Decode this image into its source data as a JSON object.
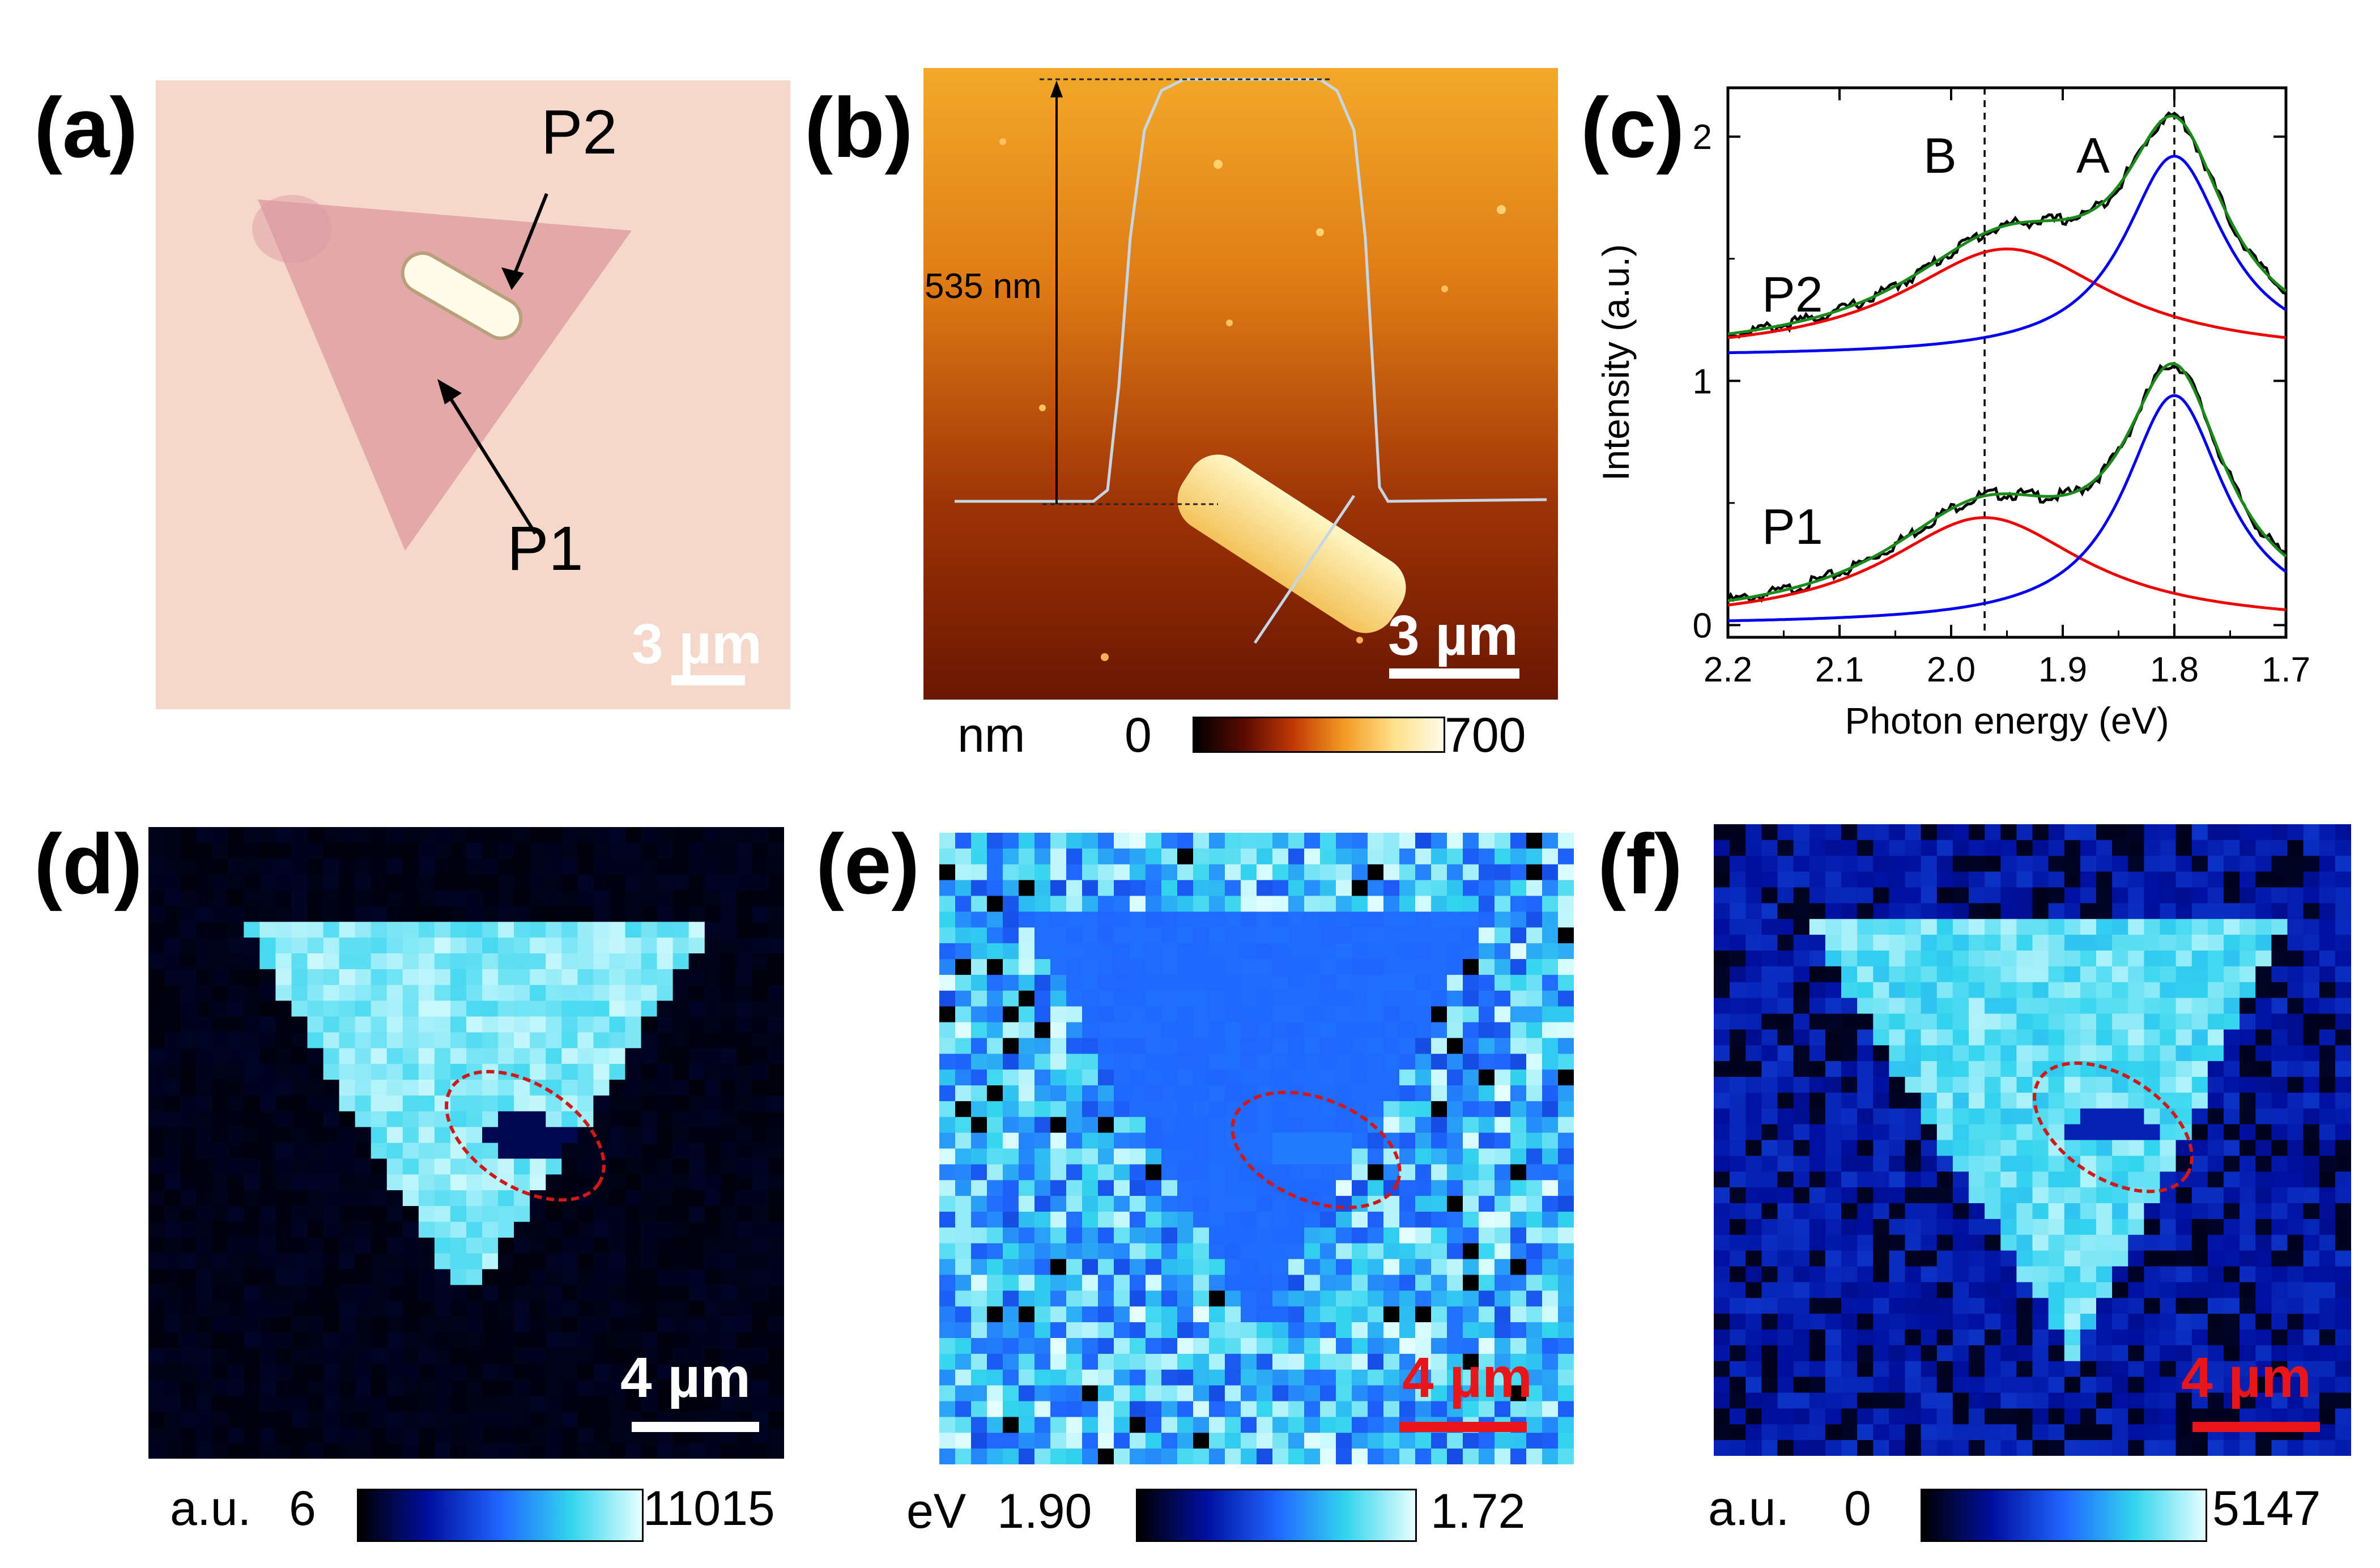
{
  "panels": {
    "a": {
      "label": "(a)",
      "p1": "P1",
      "p2": "P2",
      "scalebar": "3 µm",
      "colors": {
        "background": "#f5d6c8",
        "triangle": "#e0a6a6",
        "rod": "#fff8e8"
      }
    },
    "b": {
      "label": "(b)",
      "height_annotation": "535 nm",
      "scalebar": "3 µm",
      "colorbar": {
        "unit": "nm",
        "min": "0",
        "max": "700"
      }
    },
    "c": {
      "label": "(c)",
      "peak_b": "B",
      "peak_a": "A",
      "p1": "P1",
      "p2": "P2"
    },
    "d": {
      "label": "(d)",
      "scalebar": "4 µm",
      "colorbar": {
        "unit": "a.u.",
        "min": "6",
        "max": "11015"
      }
    },
    "e": {
      "label": "(e)",
      "scalebar": "4 µm",
      "colorbar": {
        "unit": "eV",
        "min": "1.90",
        "max": "1.72"
      }
    },
    "f": {
      "label": "(f)",
      "scalebar": "4 µm",
      "colorbar": {
        "unit": "a.u.",
        "min": "0",
        "max": "5147"
      }
    }
  },
  "chart_data": {
    "type": "line",
    "xlabel": "Photon energy (eV)",
    "ylabel": "Intensity (a.u.)",
    "xlim": [
      2.2,
      1.7
    ],
    "ylim": [
      -0.05,
      2.2
    ],
    "x_reversed": true,
    "xticks": [
      "2.2",
      "2.1",
      "2.0",
      "1.9",
      "1.8",
      "1.7"
    ],
    "yticks": [
      "0",
      "1",
      "2"
    ],
    "vlines": [
      1.97,
      1.8
    ],
    "legend": "none",
    "series_colors": {
      "data": "#000000",
      "fit": "#1a8a1a",
      "A_exciton": "#0000ee",
      "B_exciton": "#ee0000"
    },
    "series": [
      {
        "name": "P1",
        "offset": 0,
        "A": {
          "center": 1.8,
          "amp": 0.94,
          "width": 0.055
        },
        "B": {
          "center": 1.97,
          "amp": 0.44,
          "width": 0.11
        }
      },
      {
        "name": "P2",
        "offset": 1.1,
        "A": {
          "center": 1.8,
          "amp": 0.82,
          "width": 0.055
        },
        "B": {
          "center": 1.95,
          "amp": 0.44,
          "width": 0.115
        }
      }
    ]
  }
}
